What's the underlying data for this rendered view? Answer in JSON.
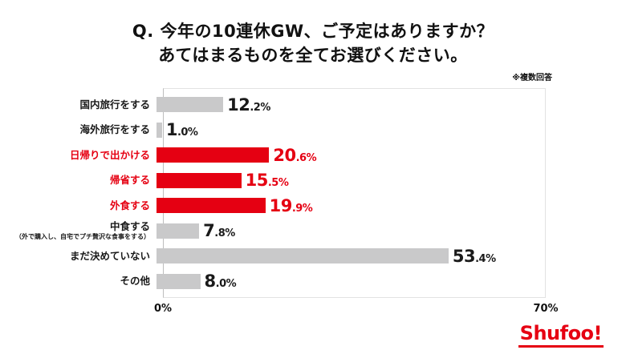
{
  "header": {
    "title_line1": "Q. 今年の10連休GW、ご予定はありますか？",
    "title_line2": "あてはまるものを全てお選びください。",
    "note": "※複数回答"
  },
  "chart_data": {
    "type": "bar",
    "orientation": "horizontal",
    "title": "Q. 今年の10連休GW、ご予定はありますか？ あてはまるものを全てお選びください。",
    "xlabel": "",
    "ylabel": "",
    "xlim": [
      0,
      70
    ],
    "x_tick_labels": [
      "0%",
      "70%"
    ],
    "grid": false,
    "legend": "none",
    "rows": [
      {
        "label": "国内旅行をする",
        "sublabel": "",
        "value": 12.2,
        "highlight": false
      },
      {
        "label": "海外旅行をする",
        "sublabel": "",
        "value": 1.0,
        "highlight": false
      },
      {
        "label": "日帰りで出かける",
        "sublabel": "",
        "value": 20.6,
        "highlight": true
      },
      {
        "label": "帰省する",
        "sublabel": "",
        "value": 15.5,
        "highlight": true
      },
      {
        "label": "外食する",
        "sublabel": "",
        "value": 19.9,
        "highlight": true
      },
      {
        "label": "中食する",
        "sublabel": "（外で購入し、自宅でプチ贅沢な食事をする）",
        "value": 7.8,
        "highlight": false
      },
      {
        "label": "まだ決めていない",
        "sublabel": "",
        "value": 53.4,
        "highlight": false
      },
      {
        "label": "その他",
        "sublabel": "",
        "value": 8.0,
        "highlight": false
      }
    ],
    "colors": {
      "bar_default": "#c9c9ca",
      "bar_highlight": "#e50012",
      "text_default": "#1a1a1a",
      "text_highlight": "#e50012"
    }
  },
  "axis": {
    "min_label": "0%",
    "max_label": "70%"
  },
  "footer": {
    "logo_text": "Shufoo!"
  }
}
